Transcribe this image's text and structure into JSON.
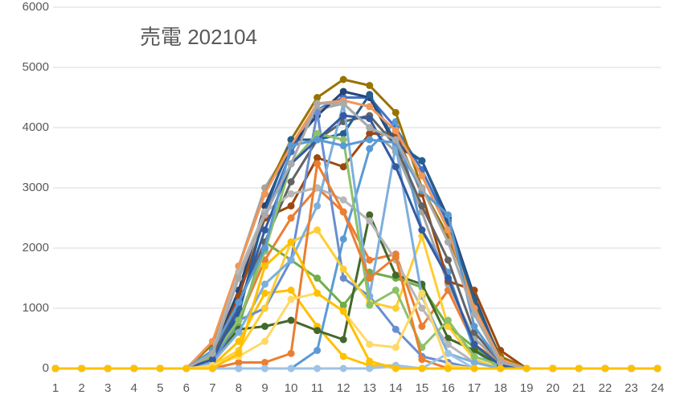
{
  "chart_data": {
    "type": "line",
    "title": "売電 202104",
    "categories": [
      "1",
      "2",
      "3",
      "4",
      "5",
      "6",
      "7",
      "8",
      "9",
      "10",
      "11",
      "12",
      "13",
      "14",
      "15",
      "16",
      "17",
      "18",
      "19",
      "20",
      "21",
      "22",
      "23",
      "24"
    ],
    "ylim": [
      0,
      6000
    ],
    "yticks": [
      0,
      1000,
      2000,
      3000,
      4000,
      5000,
      6000
    ],
    "grid": true,
    "series": [
      {
        "color": "#4472C4",
        "values": [
          0,
          0,
          0,
          0,
          0,
          0,
          250,
          1200,
          2500,
          3600,
          4300,
          4500,
          4500,
          4000,
          3300,
          2400,
          1100,
          200,
          0,
          0,
          0,
          0,
          0,
          0
        ]
      },
      {
        "color": "#ED7D31",
        "values": [
          0,
          0,
          0,
          0,
          0,
          0,
          100,
          800,
          1800,
          2500,
          3000,
          2600,
          1800,
          1900,
          700,
          1300,
          400,
          100,
          0,
          0,
          0,
          0,
          0,
          0
        ]
      },
      {
        "color": "#A5A5A5",
        "values": [
          0,
          0,
          0,
          0,
          0,
          0,
          300,
          1700,
          3000,
          3700,
          4300,
          4400,
          4000,
          3600,
          2600,
          1400,
          500,
          100,
          0,
          0,
          0,
          0,
          0,
          0
        ]
      },
      {
        "color": "#FFC000",
        "values": [
          0,
          0,
          0,
          0,
          0,
          0,
          50,
          450,
          1250,
          1300,
          700,
          200,
          50,
          50,
          0,
          0,
          0,
          0,
          0,
          0,
          0,
          0,
          0,
          0
        ]
      },
      {
        "color": "#5B9BD5",
        "values": [
          0,
          0,
          0,
          0,
          0,
          0,
          0,
          0,
          0,
          0,
          300,
          2150,
          3650,
          4100,
          2300,
          1600,
          300,
          0,
          0,
          0,
          0,
          0,
          0,
          0
        ]
      },
      {
        "color": "#70AD47",
        "values": [
          0,
          0,
          0,
          0,
          0,
          0,
          200,
          700,
          2100,
          1800,
          1500,
          1050,
          1600,
          1500,
          1350,
          700,
          350,
          50,
          0,
          0,
          0,
          0,
          0,
          0
        ]
      },
      {
        "color": "#264478",
        "values": [
          0,
          0,
          0,
          0,
          0,
          0,
          250,
          1300,
          2700,
          3700,
          4200,
          4600,
          4500,
          3700,
          3450,
          2500,
          1200,
          150,
          0,
          0,
          0,
          0,
          0,
          0
        ]
      },
      {
        "color": "#9E480E",
        "values": [
          0,
          0,
          0,
          0,
          0,
          0,
          200,
          1200,
          2500,
          2700,
          3500,
          3350,
          3900,
          3900,
          2900,
          1450,
          1300,
          300,
          0,
          0,
          0,
          0,
          0,
          0
        ]
      },
      {
        "color": "#636363",
        "values": [
          0,
          0,
          0,
          0,
          0,
          0,
          200,
          1100,
          2100,
          3100,
          3800,
          4100,
          4200,
          3700,
          2700,
          1800,
          600,
          100,
          0,
          0,
          0,
          0,
          0,
          0
        ]
      },
      {
        "color": "#997300",
        "values": [
          0,
          0,
          0,
          0,
          0,
          0,
          400,
          1700,
          2900,
          3800,
          4500,
          4800,
          4700,
          4250,
          3000,
          2200,
          1100,
          200,
          0,
          0,
          0,
          0,
          0,
          0
        ]
      },
      {
        "color": "#255E91",
        "values": [
          0,
          0,
          0,
          0,
          0,
          0,
          150,
          900,
          2600,
          3800,
          3800,
          3900,
          4550,
          3750,
          3450,
          2450,
          1150,
          150,
          0,
          0,
          0,
          0,
          0,
          0
        ]
      },
      {
        "color": "#43682B",
        "values": [
          0,
          0,
          0,
          0,
          0,
          0,
          150,
          650,
          700,
          800,
          630,
          480,
          2550,
          1550,
          1400,
          500,
          300,
          50,
          0,
          0,
          0,
          0,
          0,
          0
        ]
      },
      {
        "color": "#698ED0",
        "values": [
          0,
          0,
          0,
          0,
          0,
          0,
          100,
          800,
          1000,
          1800,
          4250,
          1500,
          1200,
          650,
          200,
          100,
          0,
          0,
          0,
          0,
          0,
          0,
          0,
          0
        ]
      },
      {
        "color": "#F1975A",
        "values": [
          0,
          0,
          0,
          0,
          0,
          0,
          450,
          1700,
          2900,
          3700,
          4400,
          4450,
          4350,
          3950,
          3200,
          2300,
          1000,
          150,
          0,
          0,
          0,
          0,
          0,
          0
        ]
      },
      {
        "color": "#B7B7B7",
        "values": [
          0,
          0,
          0,
          0,
          0,
          0,
          300,
          1600,
          2600,
          2900,
          3000,
          2800,
          2450,
          1800,
          1000,
          400,
          100,
          0,
          0,
          0,
          0,
          0,
          0,
          0
        ]
      },
      {
        "color": "#FFCD33",
        "values": [
          0,
          0,
          0,
          0,
          0,
          0,
          50,
          300,
          1000,
          2100,
          2300,
          1650,
          1100,
          1000,
          2200,
          700,
          150,
          0,
          0,
          0,
          0,
          0,
          0,
          0
        ]
      },
      {
        "color": "#7CAFDD",
        "values": [
          0,
          0,
          0,
          0,
          0,
          0,
          100,
          600,
          1400,
          1800,
          2700,
          4400,
          1200,
          3700,
          1200,
          250,
          100,
          0,
          0,
          0,
          0,
          0,
          0,
          0
        ]
      },
      {
        "color": "#8CC168",
        "values": [
          0,
          0,
          0,
          0,
          0,
          0,
          200,
          800,
          1950,
          3400,
          3900,
          3800,
          1050,
          1300,
          350,
          800,
          200,
          50,
          0,
          0,
          0,
          0,
          0,
          0
        ]
      },
      {
        "color": "#335AA1",
        "values": [
          0,
          0,
          0,
          0,
          0,
          0,
          150,
          1000,
          2300,
          3400,
          3800,
          4200,
          4150,
          3350,
          2300,
          1500,
          400,
          50,
          0,
          0,
          0,
          0,
          0,
          0
        ]
      },
      {
        "color": "#EB7E30",
        "values": [
          0,
          0,
          0,
          0,
          0,
          0,
          0,
          100,
          100,
          250,
          3400,
          2600,
          1500,
          1850,
          150,
          0,
          0,
          0,
          0,
          0,
          0,
          0,
          0,
          0
        ]
      },
      {
        "color": "#5A9AD4",
        "values": [
          0,
          0,
          0,
          0,
          0,
          0,
          300,
          1100,
          2000,
          3700,
          3800,
          3700,
          3800,
          3750,
          2950,
          2550,
          700,
          100,
          0,
          0,
          0,
          0,
          0,
          0
        ]
      },
      {
        "color": "#AAAAAA",
        "values": [
          0,
          0,
          0,
          0,
          0,
          0,
          250,
          1500,
          2550,
          3400,
          4400,
          4400,
          4000,
          3800,
          3000,
          2100,
          900,
          100,
          0,
          0,
          0,
          0,
          0,
          0
        ]
      },
      {
        "color": "#9DC3E6",
        "values": [
          0,
          0,
          0,
          0,
          0,
          0,
          0,
          0,
          0,
          0,
          0,
          0,
          0,
          50,
          0,
          250,
          0,
          0,
          0,
          0,
          0,
          0,
          0,
          0
        ]
      },
      {
        "color": "#FFD966",
        "values": [
          0,
          0,
          0,
          0,
          0,
          0,
          50,
          200,
          450,
          1150,
          1250,
          950,
          400,
          350,
          1250,
          50,
          0,
          0,
          0,
          0,
          0,
          0,
          0,
          0
        ]
      },
      {
        "color": "#FFC000",
        "values": [
          0,
          0,
          0,
          0,
          0,
          0,
          0,
          250,
          1700,
          2100,
          1250,
          950,
          120,
          0,
          0,
          0,
          0,
          0,
          0,
          0,
          0,
          0,
          0,
          0
        ]
      }
    ]
  }
}
